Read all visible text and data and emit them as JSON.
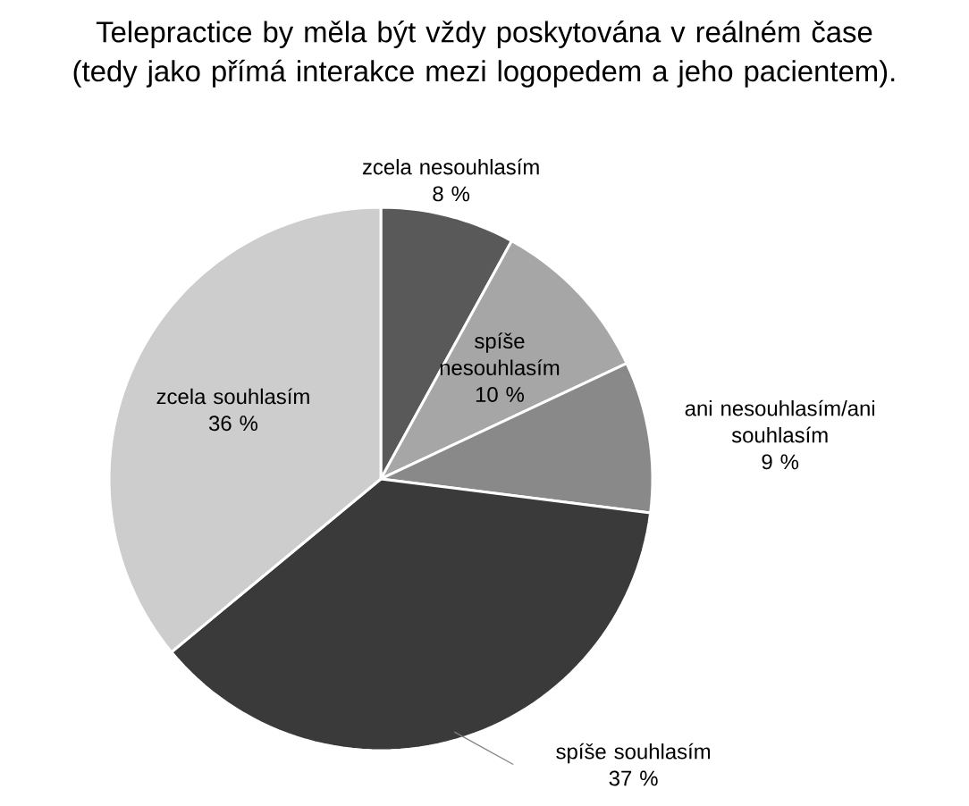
{
  "chart_data": {
    "type": "pie",
    "title": "Telepractice by měla být vždy poskytována v reálném čase (tedy jako přímá interakce mezi logopedem a jeho pacientem).",
    "categories": [
      "zcela nesouhlasím",
      "spíše nesouhlasím",
      "ani nesouhlasím/ani souhlasím",
      "spíše souhlasím",
      "zcela souhlasím"
    ],
    "values": [
      8,
      10,
      9,
      37,
      36
    ],
    "value_labels": [
      "8 %",
      "10 %",
      "9 %",
      "37 %",
      "36 %"
    ],
    "colors": [
      "#595959",
      "#a6a6a6",
      "#898989",
      "#3a3a3a",
      "#cdcdcd"
    ]
  }
}
